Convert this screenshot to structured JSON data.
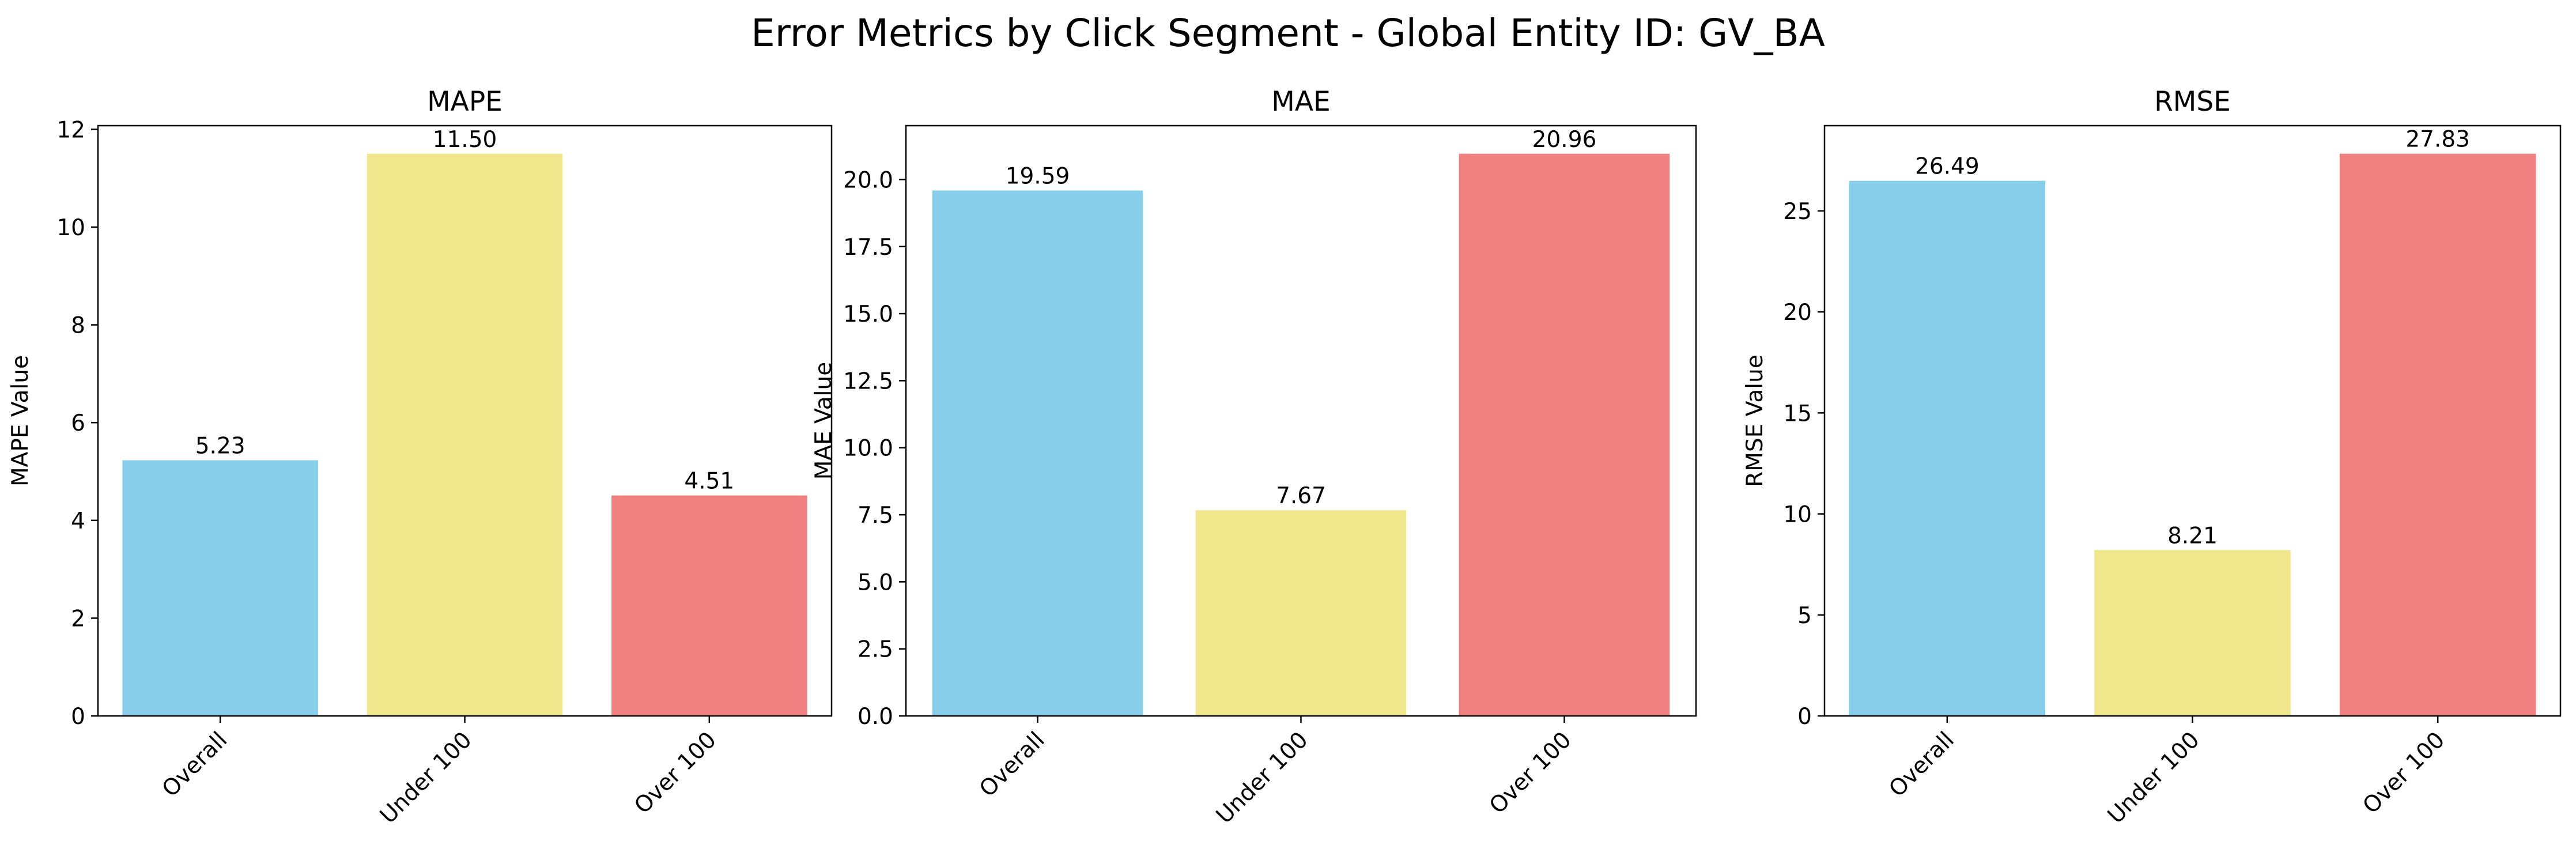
{
  "figure": {
    "suptitle": "Error Metrics by Click Segment - Global Entity ID: GV_BA"
  },
  "chart_data": [
    {
      "type": "bar",
      "title": "MAPE",
      "xlabel": "",
      "ylabel": "MAPE Value",
      "categories": [
        "Overall",
        "Under 100",
        "Over 100"
      ],
      "values": [
        5.23,
        11.5,
        4.51
      ],
      "value_labels": [
        "5.23",
        "11.50",
        "4.51"
      ],
      "colors": [
        "#87CEEB",
        "#F0E68C",
        "#F08080"
      ],
      "ylim": [
        0,
        12.075
      ],
      "yticks": [
        0,
        2,
        4,
        6,
        8,
        10,
        12
      ],
      "ytick_labels": [
        "0",
        "2",
        "4",
        "6",
        "8",
        "10",
        "12"
      ],
      "grid": false
    },
    {
      "type": "bar",
      "title": "MAE",
      "xlabel": "",
      "ylabel": "MAE Value",
      "categories": [
        "Overall",
        "Under 100",
        "Over 100"
      ],
      "values": [
        19.59,
        7.67,
        20.96
      ],
      "value_labels": [
        "19.59",
        "7.67",
        "20.96"
      ],
      "colors": [
        "#87CEEB",
        "#F0E68C",
        "#F08080"
      ],
      "ylim": [
        0,
        22.008
      ],
      "yticks": [
        0,
        2.5,
        5,
        7.5,
        10,
        12.5,
        15,
        17.5,
        20
      ],
      "ytick_labels": [
        "0.0",
        "2.5",
        "5.0",
        "7.5",
        "10.0",
        "12.5",
        "15.0",
        "17.5",
        "20.0"
      ],
      "grid": false
    },
    {
      "type": "bar",
      "title": "RMSE",
      "xlabel": "",
      "ylabel": "RMSE Value",
      "categories": [
        "Overall",
        "Under 100",
        "Over 100"
      ],
      "values": [
        26.49,
        8.21,
        27.83
      ],
      "value_labels": [
        "26.49",
        "8.21",
        "27.83"
      ],
      "colors": [
        "#87CEEB",
        "#F0E68C",
        "#F08080"
      ],
      "ylim": [
        0,
        29.22
      ],
      "yticks": [
        0,
        5,
        10,
        15,
        20,
        25
      ],
      "ytick_labels": [
        "0",
        "5",
        "10",
        "15",
        "20",
        "25"
      ],
      "grid": false
    }
  ]
}
